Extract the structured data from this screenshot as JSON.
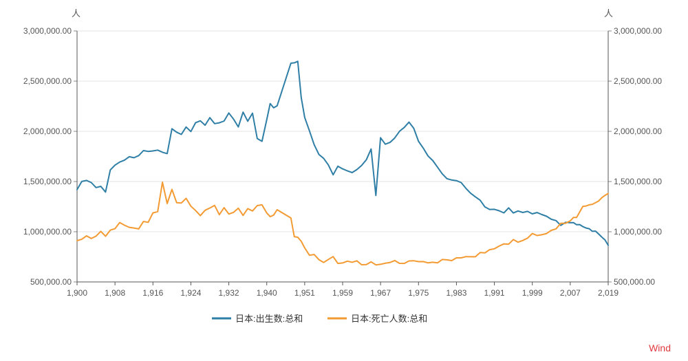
{
  "chart_data": {
    "type": "line",
    "title": "",
    "unit_left": "人",
    "unit_right": "人",
    "source": "Wind",
    "xlabel": "",
    "ylabel": "",
    "xlim": [
      1900,
      2019
    ],
    "ylim": [
      500000,
      3000000
    ],
    "y_ticks": [
      500000,
      1000000,
      1500000,
      2000000,
      2500000,
      3000000
    ],
    "y_tick_labels": [
      "500,000.00",
      "1,000,000.00",
      "1,500,000.00",
      "2,000,000.00",
      "2,500,000.00",
      "3,000,000.00"
    ],
    "x_ticks": [
      1900,
      1908,
      1916,
      1924,
      1932,
      1940,
      1951,
      1959,
      1967,
      1975,
      1983,
      1991,
      1999,
      2007,
      2019
    ],
    "x_tick_labels": [
      "1,900",
      "1,908",
      "1,916",
      "1,924",
      "1,932",
      "1,940",
      "1,951",
      "1,959",
      "1,967",
      "1,975",
      "1,983",
      "1,991",
      "1,999",
      "2,007",
      "2,019"
    ],
    "grid": true,
    "legend_position": "bottom",
    "x": [
      1900,
      1901,
      1902,
      1903,
      1904,
      1905,
      1906,
      1907,
      1908,
      1909,
      1910,
      1911,
      1912,
      1913,
      1914,
      1915,
      1916,
      1917,
      1918,
      1919,
      1920,
      1921,
      1922,
      1923,
      1924,
      1925,
      1926,
      1927,
      1928,
      1929,
      1930,
      1931,
      1932,
      1933,
      1934,
      1935,
      1936,
      1937,
      1938,
      1939,
      1940,
      1941,
      1942,
      1943,
      1947,
      1948,
      1949,
      1950,
      1951,
      1952,
      1953,
      1954,
      1955,
      1956,
      1957,
      1958,
      1959,
      1960,
      1961,
      1962,
      1963,
      1964,
      1965,
      1966,
      1967,
      1968,
      1969,
      1970,
      1971,
      1972,
      1973,
      1974,
      1975,
      1976,
      1977,
      1978,
      1979,
      1980,
      1981,
      1982,
      1983,
      1984,
      1985,
      1986,
      1987,
      1988,
      1989,
      1990,
      1991,
      1992,
      1993,
      1994,
      1995,
      1996,
      1997,
      1998,
      1999,
      2000,
      2001,
      2002,
      2003,
      2004,
      2005,
      2006,
      2007,
      2008,
      2009,
      2010,
      2011,
      2012,
      2013,
      2014,
      2015,
      2016,
      2017,
      2018,
      2019
    ],
    "series": [
      {
        "name": "日本:出生数:总和",
        "color": "#2e7ea6",
        "values": [
          1420000,
          1501000,
          1511000,
          1490000,
          1440000,
          1452000,
          1395000,
          1615000,
          1663000,
          1694000,
          1713000,
          1747000,
          1737000,
          1758000,
          1808000,
          1800000,
          1805000,
          1813000,
          1792000,
          1778000,
          2026000,
          1991000,
          1969000,
          2043000,
          1998000,
          2086000,
          2105000,
          2061000,
          2136000,
          2077000,
          2085000,
          2103000,
          2183000,
          2121000,
          2044000,
          2191000,
          2101000,
          2181000,
          1928000,
          1901000,
          2116000,
          2277000,
          2234000,
          2254000,
          2679000,
          2682000,
          2697000,
          2338000,
          2138000,
          2005000,
          1868000,
          1770000,
          1731000,
          1665000,
          1567000,
          1653000,
          1626000,
          1606000,
          1589000,
          1619000,
          1660000,
          1717000,
          1824000,
          1361000,
          1936000,
          1872000,
          1890000,
          1934000,
          2001000,
          2039000,
          2092000,
          2030000,
          1901000,
          1833000,
          1755000,
          1709000,
          1643000,
          1577000,
          1529000,
          1515000,
          1509000,
          1490000,
          1432000,
          1383000,
          1347000,
          1314000,
          1247000,
          1222000,
          1223000,
          1209000,
          1188000,
          1238000,
          1187000,
          1207000,
          1192000,
          1203000,
          1178000,
          1191000,
          1171000,
          1154000,
          1124000,
          1111000,
          1063000,
          1093000,
          1090000,
          1091000,
          1070000,
          1071000,
          1051000,
          1037000,
          1030000,
          1004000,
          1006000,
          977000,
          946000,
          918000,
          865000
        ]
      },
      {
        "name": "日本:死亡人数:总和",
        "color": "#f39b32",
        "values": [
          911000,
          925000,
          959000,
          932000,
          956000,
          1004000,
          955000,
          1016000,
          1030000,
          1092000,
          1065000,
          1044000,
          1037000,
          1028000,
          1102000,
          1094000,
          1188000,
          1200000,
          1493000,
          1281000,
          1422000,
          1289000,
          1286000,
          1333000,
          1255000,
          1211000,
          1160000,
          1214000,
          1236000,
          1262000,
          1170000,
          1240000,
          1176000,
          1193000,
          1234000,
          1162000,
          1230000,
          1207000,
          1260000,
          1268000,
          1187000,
          1150000,
          1166000,
          1219000,
          1137000,
          950000,
          945000,
          905000,
          839000,
          766000,
          773000,
          722000,
          694000,
          724000,
          752000,
          684000,
          689000,
          707000,
          696000,
          710000,
          671000,
          673000,
          700000,
          670000,
          675000,
          686000,
          694000,
          713000,
          685000,
          684000,
          709000,
          711000,
          702000,
          703000,
          690000,
          696000,
          690000,
          723000,
          720000,
          712000,
          740000,
          740000,
          752000,
          751000,
          751000,
          793000,
          789000,
          821000,
          830000,
          857000,
          879000,
          876000,
          922000,
          896000,
          913000,
          936000,
          982000,
          962000,
          970000,
          982000,
          1014000,
          1029000,
          1084000,
          1084000,
          1108000,
          1142000,
          1142000,
          1197000,
          1253000,
          1256000,
          1268000,
          1273000,
          1290000,
          1307000,
          1340000,
          1362000,
          1381000
        ]
      }
    ]
  }
}
